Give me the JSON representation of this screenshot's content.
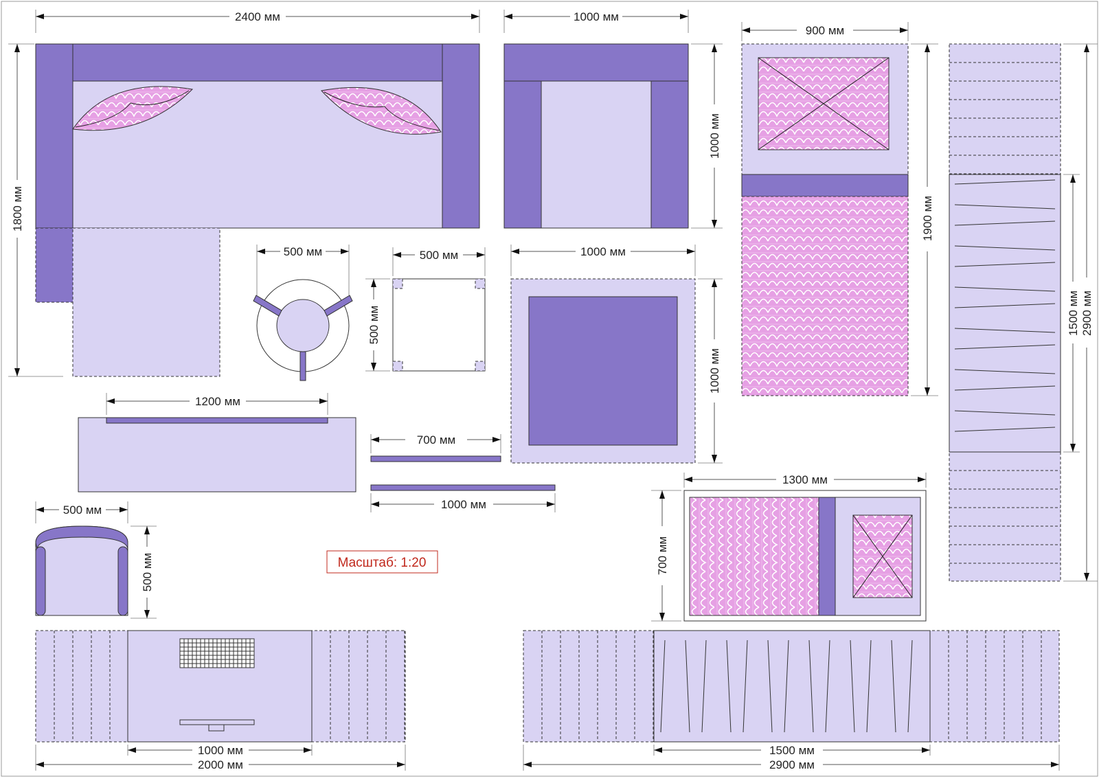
{
  "colors": {
    "light": "#d9d3f3",
    "dark": "#8776c8",
    "pink": "#e6a0e4",
    "pattern_line": "#ffffff",
    "scale_text": "#c0281c"
  },
  "dims": {
    "sofa_w": "2400 мм",
    "sofa_h": "1800 мм",
    "armchair_w": "1000 мм",
    "armchair_h": "1000 мм",
    "bed_w": "900 мм",
    "bed_h": "1900 мм",
    "wardrobe_inner": "1500 мм",
    "wardrobe_outer": "2900 мм",
    "round_table_w": "500 мм",
    "stool_w": "500 мм",
    "stool_h": "500 мм",
    "table_w": "1000 мм",
    "table_h": "1000 мм",
    "desk_w": "1200 мм",
    "shelf_700": "700 мм",
    "shelf_1000": "1000 мм",
    "chair_w": "500 мм",
    "chair_h": "500 мм",
    "crib_w": "1300 мм",
    "crib_h": "700 мм",
    "kitchen_inner": "1000 мм",
    "kitchen_outer": "2000 мм",
    "bottom_inner": "1500 мм",
    "bottom_outer": "2900 мм"
  },
  "scale_label": "Масштаб: 1:20"
}
